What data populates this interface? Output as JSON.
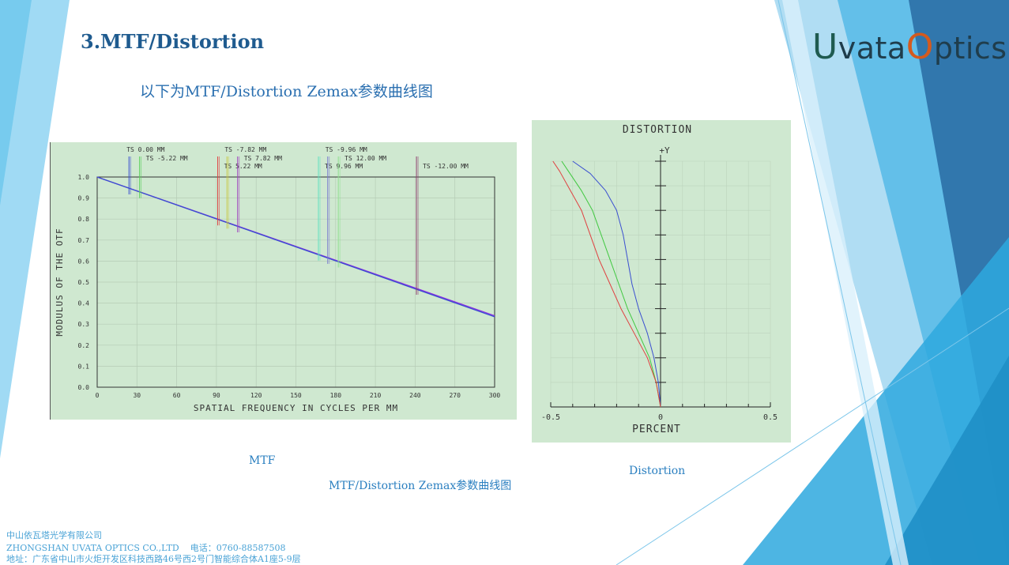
{
  "slide": {
    "title": "3.MTF/Distortion",
    "subtitle": "以下为MTF/Distortion Zemax参数曲线图",
    "logo": {
      "first": "U",
      "middle": "vata",
      "second": "O",
      "rest": "ptics"
    },
    "caption_mtf": "MTF",
    "caption_distortion": "Distortion",
    "caption_main": "MTF/Distortion Zemax参数曲线图",
    "footer": {
      "company_cn": "中山依瓦塔光学有限公司",
      "company_en": "ZHONGSHAN UVATA OPTICS CO.,LTD",
      "phone": "电话：0760-88587508",
      "address": "地址：广东省中山市火炬开发区科技西路46号西2号门智能综合体A1座5-9层"
    },
    "colors": {
      "accent": "#2a7fc0",
      "plot_bg": "#cfe8d0"
    }
  },
  "chart_data": [
    {
      "type": "line",
      "xlabel": "SPATIAL FREQUENCY IN CYCLES PER MM",
      "ylabel": "MODULUS OF THE OTF",
      "xlim": [
        0,
        300
      ],
      "ylim": [
        0,
        1
      ],
      "xticks": [
        "0",
        "30",
        "60",
        "90",
        "120",
        "150",
        "180",
        "210",
        "240",
        "270",
        "300"
      ],
      "yticks": [
        "0.0",
        "0.1",
        "0.2",
        "0.3",
        "0.4",
        "0.5",
        "0.6",
        "0.7",
        "0.8",
        "0.9",
        "1.0"
      ],
      "grid": true,
      "series": [
        {
          "x": [
            0,
            300
          ],
          "y": [
            1.0,
            0.34
          ],
          "color": "#8a2be2"
        },
        {
          "x": [
            0,
            300
          ],
          "y": [
            1.0,
            0.335
          ],
          "color": "#3a4fd0"
        }
      ],
      "field_labels": [
        {
          "text": "TS 0.00 MM",
          "x": 24,
          "color": "#3a4fd0"
        },
        {
          "text": "TS -5.22 MM",
          "x": 32,
          "color": "#5ad05a"
        },
        {
          "text": "TS 5.22 MM",
          "x": 91,
          "color": "#e04040"
        },
        {
          "text": "TS -7.82 MM",
          "x": 98,
          "color": "#c8c840"
        },
        {
          "text": "TS 7.82 MM",
          "x": 106,
          "color": "#a040c0"
        },
        {
          "text": "TS 9.96 MM",
          "x": 167,
          "color": "#60e0c0"
        },
        {
          "text": "TS -9.96 MM",
          "x": 174,
          "color": "#7a7ad0"
        },
        {
          "text": "TS 12.00 MM",
          "x": 182,
          "color": "#90e090"
        },
        {
          "text": "TS -12.00 MM",
          "x": 241,
          "color": "#904070"
        }
      ]
    },
    {
      "type": "line",
      "title": "DISTORTION",
      "xlabel": "PERCENT",
      "ylabel": "+Y",
      "xlim": [
        -0.5,
        0.5
      ],
      "ylim": [
        0,
        1
      ],
      "xticks": [
        "-0.5",
        "0",
        "0.5"
      ],
      "grid": true,
      "series": [
        {
          "color": "#3a4fd0",
          "x": [
            0,
            -0.01,
            -0.03,
            -0.06,
            -0.1,
            -0.13,
            -0.15,
            -0.17,
            -0.2,
            -0.25,
            -0.32,
            -0.4
          ],
          "y": [
            0,
            0.1,
            0.2,
            0.3,
            0.4,
            0.5,
            0.6,
            0.7,
            0.8,
            0.88,
            0.95,
            1.0
          ]
        },
        {
          "color": "#40c840",
          "x": [
            0,
            -0.02,
            -0.05,
            -0.1,
            -0.15,
            -0.19,
            -0.23,
            -0.27,
            -0.31,
            -0.36,
            -0.42,
            -0.45
          ],
          "y": [
            0,
            0.1,
            0.2,
            0.3,
            0.4,
            0.5,
            0.6,
            0.7,
            0.8,
            0.88,
            0.96,
            1.0
          ]
        },
        {
          "color": "#e04040",
          "x": [
            0,
            -0.02,
            -0.06,
            -0.12,
            -0.18,
            -0.23,
            -0.28,
            -0.32,
            -0.36,
            -0.41,
            -0.46,
            -0.49
          ],
          "y": [
            0,
            0.1,
            0.2,
            0.3,
            0.4,
            0.5,
            0.6,
            0.7,
            0.8,
            0.88,
            0.96,
            1.0
          ]
        }
      ]
    }
  ]
}
